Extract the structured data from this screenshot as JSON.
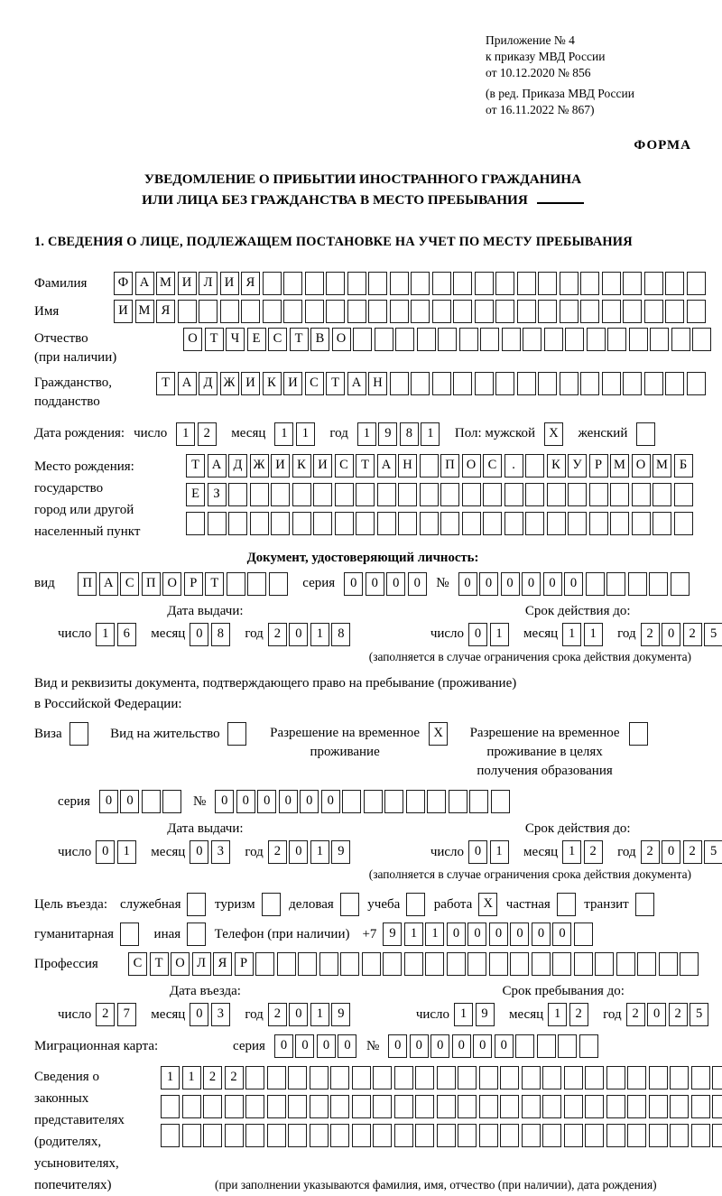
{
  "common": {
    "series_label": "серия",
    "number_label": "№",
    "day_label": "число",
    "month_label": "месяц",
    "year_label": "год"
  },
  "header": {
    "line1": "Приложение № 4",
    "line2": "к приказу МВД России",
    "line3": "от 10.12.2020 № 856",
    "line4": "(в ред. Приказа МВД России",
    "line5": "от 16.11.2022 № 867)",
    "form_label": "ФОРМА"
  },
  "title": {
    "line1": "УВЕДОМЛЕНИЕ О ПРИБЫТИИ ИНОСТРАННОГО ГРАЖДАНИНА",
    "line2": "ИЛИ ЛИЦА БЕЗ ГРАЖДАНСТВА В МЕСТО ПРЕБЫВАНИЯ"
  },
  "section1_heading": "1. СВЕДЕНИЯ О ЛИЦЕ, ПОДЛЕЖАЩЕМ ПОСТАНОВКЕ НА УЧЕТ ПО МЕСТУ ПРЕБЫВАНИЯ",
  "surname": {
    "label": "Фамилия",
    "cells": {
      "value": "ФАМИЛИЯ",
      "length": 28
    }
  },
  "firstname": {
    "label": "Имя",
    "cells": {
      "value": "ИМЯ",
      "length": 28
    }
  },
  "patronymic": {
    "label_line1": "Отчество",
    "label_line2": "(при наличии)",
    "cells": {
      "value": "ОТЧЕСТВО",
      "length": 25
    }
  },
  "citizenship": {
    "label_line1": "Гражданство,",
    "label_line2": "подданство",
    "cells": {
      "value": "ТАДЖИКИСТАН",
      "length": 26
    }
  },
  "birth_date": {
    "label": "Дата рождения:",
    "day": {
      "value": "12",
      "length": 2
    },
    "month": {
      "value": "11",
      "length": 2
    },
    "year": {
      "value": "1981",
      "length": 4
    },
    "sex_label": "Пол: мужской",
    "male_box": {
      "value": "X",
      "length": 1
    },
    "female_label": "женский",
    "female_box": {
      "value": "",
      "length": 1
    }
  },
  "birth_place": {
    "label": "Место рождения:",
    "sub_label1": "государство",
    "sub_label2": "город или другой",
    "sub_label3": "населенный пункт",
    "row1": {
      "value": "ТАДЖИКИСТАН ПОС. КУРМОМБ",
      "length": 24
    },
    "row2": {
      "value": "ЕЗ",
      "length": 24
    },
    "row3": {
      "value": "",
      "length": 24
    }
  },
  "identity_doc": {
    "heading": "Документ, удостоверяющий личность:",
    "type_label": "вид",
    "type": {
      "value": "ПАСПОРТ",
      "length": 10
    },
    "series": {
      "value": "0000",
      "length": 4
    },
    "number": {
      "value": "000000",
      "length": 11
    },
    "issue_heading": "Дата выдачи:",
    "issue_day": {
      "value": "16",
      "length": 2
    },
    "issue_month": {
      "value": "08",
      "length": 2
    },
    "issue_year": {
      "value": "2018",
      "length": 4
    },
    "valid_heading": "Срок действия до:",
    "valid_day": {
      "value": "01",
      "length": 2
    },
    "valid_month": {
      "value": "11",
      "length": 2
    },
    "valid_year": {
      "value": "2025",
      "length": 4
    },
    "note": "(заполняется в случае ограничения срока действия документа)"
  },
  "residence_doc": {
    "intro_line1": "Вид и реквизиты документа, подтверждающего право на пребывание (проживание)",
    "intro_line2": "в Российской Федерации:",
    "visa_label": "Виза",
    "visa_box": {
      "value": "",
      "length": 1
    },
    "permit_label": "Вид на жительство",
    "permit_box": {
      "value": "",
      "length": 1
    },
    "temp_label_line1": "Разрешение на временное",
    "temp_label_line2": "проживание",
    "temp_box": {
      "value": "X",
      "length": 1
    },
    "edu_label_line1": "Разрешение на временное",
    "edu_label_line2": "проживание в целях",
    "edu_label_line3": "получения образования",
    "edu_box": {
      "value": "",
      "length": 1
    },
    "series": {
      "value": "00",
      "length": 4
    },
    "number": {
      "value": "000000",
      "length": 14
    },
    "issue_heading": "Дата выдачи:",
    "issue_day": {
      "value": "01",
      "length": 2
    },
    "issue_month": {
      "value": "03",
      "length": 2
    },
    "issue_year": {
      "value": "2019",
      "length": 4
    },
    "valid_heading": "Срок действия до:",
    "valid_day": {
      "value": "01",
      "length": 2
    },
    "valid_month": {
      "value": "12",
      "length": 2
    },
    "valid_year": {
      "value": "2025",
      "length": 4
    },
    "note": "(заполняется в случае ограничения срока действия документа)"
  },
  "visit_purpose": {
    "label": "Цель въезда:",
    "official_label": "служебная",
    "official_box": {
      "value": "",
      "length": 1
    },
    "tourism_label": "туризм",
    "tourism_box": {
      "value": "",
      "length": 1
    },
    "business_label": "деловая",
    "business_box": {
      "value": "",
      "length": 1
    },
    "study_label": "учеба",
    "study_box": {
      "value": "",
      "length": 1
    },
    "work_label": "работа",
    "work_box": {
      "value": "X",
      "length": 1
    },
    "private_label": "частная",
    "private_box": {
      "value": "",
      "length": 1
    },
    "transit_label": "транзит",
    "transit_box": {
      "value": "",
      "length": 1
    },
    "humanitarian_label": "гуманитарная",
    "humanitarian_box": {
      "value": "",
      "length": 1
    },
    "other_label": "иная",
    "other_box": {
      "value": "",
      "length": 1
    },
    "phone_label": "Телефон (при наличии)",
    "phone_prefix": "+7",
    "phone": {
      "value": "911000000",
      "length": 10
    }
  },
  "profession": {
    "label": "Профессия",
    "cells": {
      "value": "СТОЛЯР",
      "length": 27
    }
  },
  "entry": {
    "date_heading": "Дата въезда:",
    "date_day": {
      "value": "27",
      "length": 2
    },
    "date_month": {
      "value": "03",
      "length": 2
    },
    "date_year": {
      "value": "2019",
      "length": 4
    },
    "stay_heading": "Срок пребывания до:",
    "stay_day": {
      "value": "19",
      "length": 2
    },
    "stay_month": {
      "value": "12",
      "length": 2
    },
    "stay_year": {
      "value": "2025",
      "length": 4
    }
  },
  "migration_card": {
    "label": "Миграционная карта:",
    "series": {
      "value": "0000",
      "length": 4
    },
    "number": {
      "value": "000000",
      "length": 10
    }
  },
  "representatives": {
    "label_line1": "Сведения о",
    "label_line2": "законных",
    "label_line3": "представителях",
    "label_line4": "(родителях,",
    "label_line5": "усыновителях,",
    "label_line6": "попечителях)",
    "row1": {
      "value": "1122",
      "length": 27
    },
    "row2": {
      "value": "",
      "length": 27
    },
    "row3": {
      "value": "",
      "length": 27
    },
    "note": "(при заполнении указываются фамилия, имя, отчество (при наличии), дата рождения)"
  }
}
